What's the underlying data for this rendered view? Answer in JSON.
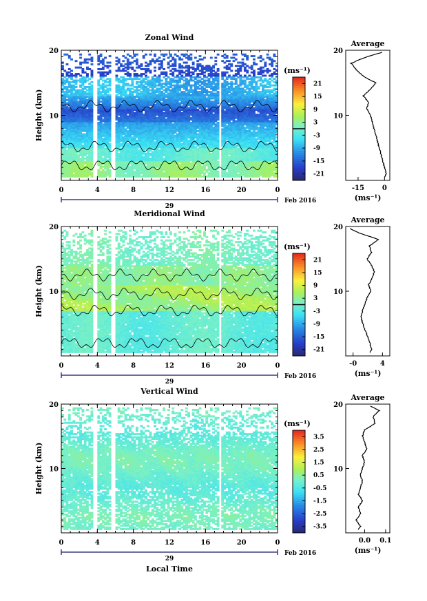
{
  "chart_data": [
    {
      "type": "heatmap",
      "title": "Zonal Wind",
      "ylabel": "Height (km)",
      "yticks": [
        10,
        20
      ],
      "ylim": [
        0,
        20
      ],
      "xticks": [
        "0",
        "4",
        "8",
        "12",
        "16",
        "20",
        "0"
      ],
      "xlim": [
        0,
        24
      ],
      "date_label": "29",
      "month_label": "Feb 2016",
      "colorbar": {
        "unit_label": "(ms⁻¹)",
        "ticks": [
          "21",
          "15",
          "9",
          "3",
          "-3",
          "-9",
          "-15",
          "-21"
        ],
        "range": [
          -24,
          24
        ],
        "contour_level": 0
      },
      "profile": {
        "title": "Average",
        "xticks": [
          "-15",
          "0"
        ],
        "xlim": [
          -22,
          3
        ],
        "xlabel": "(ms⁻¹)",
        "heights": [
          0.5,
          1,
          2,
          3,
          4,
          5,
          6,
          7,
          8,
          9,
          10,
          11,
          12,
          13,
          14,
          15,
          16,
          17,
          18,
          19,
          19.8
        ],
        "values": [
          0,
          1,
          0,
          -1,
          -2,
          -3,
          -4,
          -5,
          -6,
          -7,
          -8,
          -10,
          -9,
          -12,
          -8,
          -5,
          -12,
          -16,
          -19,
          -10,
          0
        ]
      }
    },
    {
      "type": "heatmap",
      "title": "Meridional Wind",
      "ylabel": "Height (km)",
      "yticks": [
        10,
        20
      ],
      "ylim": [
        0,
        20
      ],
      "xticks": [
        "0",
        "4",
        "8",
        "12",
        "16",
        "20",
        "0"
      ],
      "xlim": [
        0,
        24
      ],
      "date_label": "29",
      "month_label": "Feb 2016",
      "colorbar": {
        "unit_label": "(ms⁻¹)",
        "ticks": [
          "21",
          "15",
          "9",
          "3",
          "-3",
          "-9",
          "-15",
          "-21"
        ],
        "range": [
          -24,
          24
        ],
        "contour_level": 0
      },
      "profile": {
        "title": "Average",
        "xticks": [
          "-0",
          "4"
        ],
        "xlim": [
          -1,
          5
        ],
        "xlabel": "(ms⁻¹)",
        "heights": [
          0.5,
          1,
          2,
          3,
          4,
          5,
          6,
          7,
          8,
          9,
          10,
          11,
          12,
          13,
          14,
          15,
          16,
          17,
          18,
          19,
          19.8
        ],
        "values": [
          2.3,
          2.5,
          2.3,
          2,
          1.6,
          1.3,
          1.1,
          1.3,
          1.6,
          1.9,
          2.4,
          2.1,
          2.6,
          2.9,
          2.5,
          1.9,
          2.5,
          2.2,
          3.5,
          0.8,
          -0.6
        ]
      }
    },
    {
      "type": "heatmap",
      "title": "Vertical Wind",
      "ylabel": "Height (km)",
      "yticks": [
        10,
        20
      ],
      "ylim": [
        0,
        20
      ],
      "xticks": [
        "0",
        "4",
        "8",
        "12",
        "16",
        "20",
        "0"
      ],
      "xlim": [
        0,
        24
      ],
      "date_label": "29",
      "month_label": "Feb 2016",
      "xlabel": "Local Time",
      "colorbar": {
        "unit_label": "(ms⁻¹)",
        "ticks": [
          "3.5",
          "2.5",
          "1.5",
          "0.5",
          "-0.5",
          "-1.5",
          "-2.5",
          "-3.5"
        ],
        "range": [
          -4,
          4
        ],
        "contour_level": null
      },
      "profile": {
        "title": "Average",
        "xticks": [
          "0.0",
          "0.1"
        ],
        "xlim": [
          -0.09,
          0.12
        ],
        "xlabel": "(ms⁻¹)",
        "heights": [
          0.5,
          1,
          2,
          3,
          4,
          5,
          6,
          7,
          8,
          9,
          10,
          11,
          12,
          13,
          14,
          15,
          16,
          17,
          18,
          19,
          19.8
        ],
        "values": [
          -0.03,
          -0.02,
          -0.04,
          -0.02,
          -0.03,
          -0.01,
          -0.03,
          -0.02,
          -0.01,
          -0.02,
          -0.01,
          0,
          -0.01,
          0.01,
          0,
          -0.01,
          0,
          0.05,
          0.04,
          0.07,
          0.02
        ]
      }
    }
  ]
}
